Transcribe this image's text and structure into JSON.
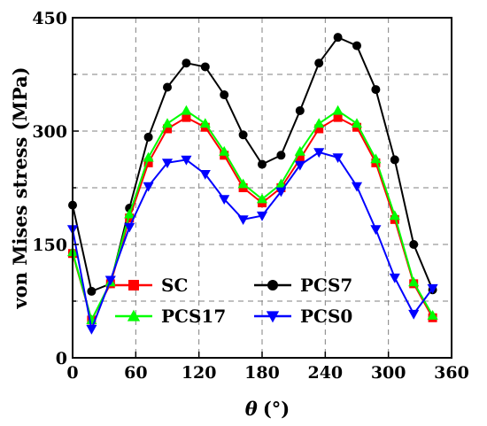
{
  "chart_data": {
    "type": "line",
    "xlabel": "θ (°)",
    "xlabel_symbol": "θ",
    "xlabel_unit": "(°)",
    "ylabel": "von Mises stress (MPa)",
    "xlim": [
      0,
      360
    ],
    "ylim": [
      0,
      450
    ],
    "xticks": [
      0,
      60,
      120,
      180,
      240,
      300,
      360
    ],
    "yticks": [
      0,
      150,
      300,
      450
    ],
    "xtick_labels": [
      "0",
      "60",
      "120",
      "180",
      "240",
      "300",
      "360"
    ],
    "ytick_labels": [
      "0",
      "150",
      "300",
      "450"
    ],
    "grid": true,
    "legend_placement": "lower-center",
    "x": [
      0,
      18,
      36,
      54,
      72,
      90,
      108,
      126,
      144,
      162,
      180,
      198,
      216,
      234,
      252,
      270,
      288,
      306,
      324,
      342
    ],
    "series": [
      {
        "name": "SC",
        "color": "#ff0000",
        "marker": "square",
        "values": [
          138,
          50,
          98,
          185,
          258,
          303,
          318,
          305,
          268,
          225,
          205,
          225,
          263,
          303,
          318,
          305,
          258,
          183,
          98,
          53
        ]
      },
      {
        "name": "PCS7",
        "color": "#000000",
        "marker": "circle",
        "values": [
          202,
          88,
          98,
          198,
          292,
          358,
          390,
          385,
          348,
          295,
          256,
          268,
          327,
          390,
          424,
          413,
          355,
          262,
          150,
          90
        ]
      },
      {
        "name": "PCS17",
        "color": "#00ff00",
        "marker": "triangle-up",
        "values": [
          140,
          50,
          100,
          190,
          265,
          310,
          327,
          310,
          273,
          230,
          210,
          230,
          273,
          310,
          327,
          310,
          263,
          188,
          100,
          56
        ]
      },
      {
        "name": "PCS0",
        "color": "#0000ff",
        "marker": "triangle-down",
        "values": [
          170,
          38,
          103,
          173,
          227,
          258,
          262,
          243,
          210,
          183,
          188,
          220,
          255,
          272,
          265,
          227,
          170,
          106,
          58,
          92
        ]
      }
    ],
    "legend_order": [
      "SC",
      "PCS7",
      "PCS17",
      "PCS0"
    ]
  }
}
